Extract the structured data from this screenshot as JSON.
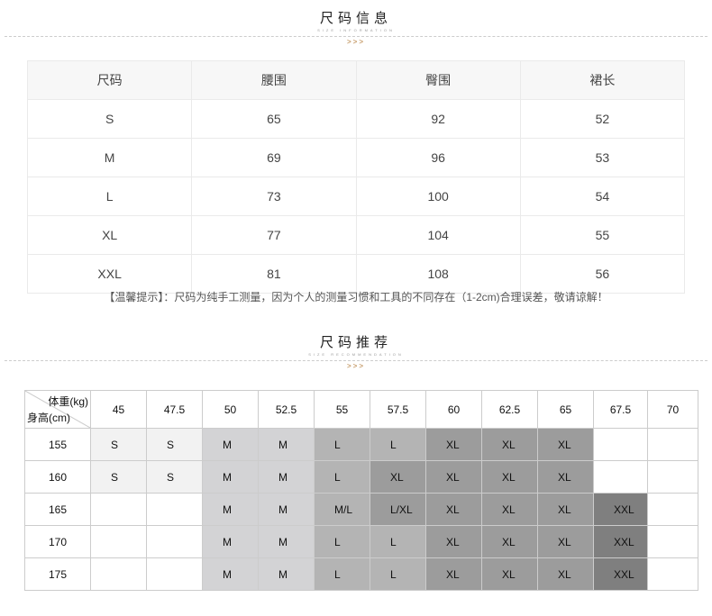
{
  "size_info": {
    "title": "尺码信息",
    "subtitle": "SIZE INFORMATION",
    "arrows": ">>>",
    "headers": [
      "尺码",
      "腰围",
      "臀围",
      "裙长"
    ],
    "rows": [
      [
        "S",
        "65",
        "92",
        "52"
      ],
      [
        "M",
        "69",
        "96",
        "53"
      ],
      [
        "L",
        "73",
        "100",
        "54"
      ],
      [
        "XL",
        "77",
        "104",
        "55"
      ],
      [
        "XXL",
        "81",
        "108",
        "56"
      ]
    ]
  },
  "notice": "【温馨提示】：尺码为纯手工测量，因为个人的测量习惯和工具的不同存在（1-2cm)合理误差，敬请谅解！",
  "size_rec": {
    "title": "尺码推荐",
    "subtitle": "SIZE RECOMMENDATION",
    "arrows": ">>>",
    "weight_label": "体重(kg)",
    "height_label": "身高(cm)",
    "weights": [
      "45",
      "47.5",
      "50",
      "52.5",
      "55",
      "57.5",
      "60",
      "62.5",
      "65",
      "67.5",
      "70"
    ],
    "rows": [
      {
        "height": "155",
        "sizes": [
          "S",
          "S",
          "M",
          "M",
          "L",
          "L",
          "XL",
          "XL",
          "XL",
          "",
          ""
        ]
      },
      {
        "height": "160",
        "sizes": [
          "S",
          "S",
          "M",
          "M",
          "L",
          "XL",
          "XL",
          "XL",
          "XL",
          "",
          ""
        ]
      },
      {
        "height": "165",
        "sizes": [
          "",
          "",
          "M",
          "M",
          "M/L",
          "L/XL",
          "XL",
          "XL",
          "XL",
          "XXL",
          ""
        ]
      },
      {
        "height": "170",
        "sizes": [
          "",
          "",
          "M",
          "M",
          "L",
          "L",
          "XL",
          "XL",
          "XL",
          "XXL",
          ""
        ]
      },
      {
        "height": "175",
        "sizes": [
          "",
          "",
          "M",
          "M",
          "L",
          "L",
          "XL",
          "XL",
          "XL",
          "XXL",
          ""
        ]
      }
    ],
    "colors": {
      "S": "#f2f2f2",
      "M": "#d3d3d5",
      "L": "#b4b4b4",
      "M/L": "#b4b4b4",
      "XL": "#9c9c9c",
      "L/XL": "#9c9c9c",
      "XXL": "#7f7f7f",
      "": "#ffffff"
    }
  }
}
